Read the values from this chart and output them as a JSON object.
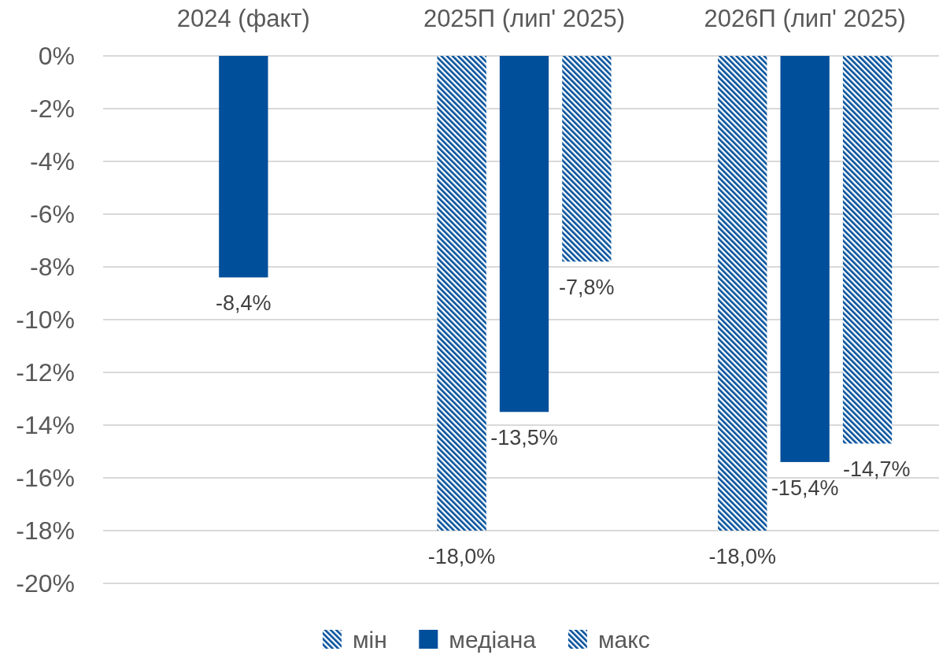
{
  "chart_data": {
    "type": "bar",
    "categories": [
      "2024 (факт)",
      "2025П (лип' 2025)",
      "2026П (лип' 2025)"
    ],
    "series": [
      {
        "name": "мін",
        "color": "#004f9b",
        "values": [
          null,
          -18.0,
          -18.0
        ],
        "value_labels": [
          null,
          "-18,0%",
          "-18,0%"
        ]
      },
      {
        "name": "медіана",
        "color": "#004f9b",
        "values": [
          -8.4,
          -13.5,
          -15.4
        ],
        "value_labels": [
          "-8,4%",
          "-13,5%",
          "-15,4%"
        ]
      },
      {
        "name": "макс",
        "color": "#004f9b",
        "values": [
          null,
          -7.8,
          -14.7
        ],
        "value_labels": [
          null,
          "-7,8%",
          "-14,7%"
        ]
      }
    ],
    "ylim": [
      -20,
      0
    ],
    "yticks": [
      {
        "value": 0,
        "label": "0%"
      },
      {
        "value": -2,
        "label": "-2%"
      },
      {
        "value": -4,
        "label": "-4%"
      },
      {
        "value": -6,
        "label": "-6%"
      },
      {
        "value": -8,
        "label": "-8%"
      },
      {
        "value": -10,
        "label": "-10%"
      },
      {
        "value": -12,
        "label": "-12%"
      },
      {
        "value": -14,
        "label": "-14%"
      },
      {
        "value": -16,
        "label": "-16%"
      },
      {
        "value": -18,
        "label": "-18%"
      },
      {
        "value": -20,
        "label": "-20%"
      }
    ],
    "grid": "y",
    "legend": "bottom"
  }
}
